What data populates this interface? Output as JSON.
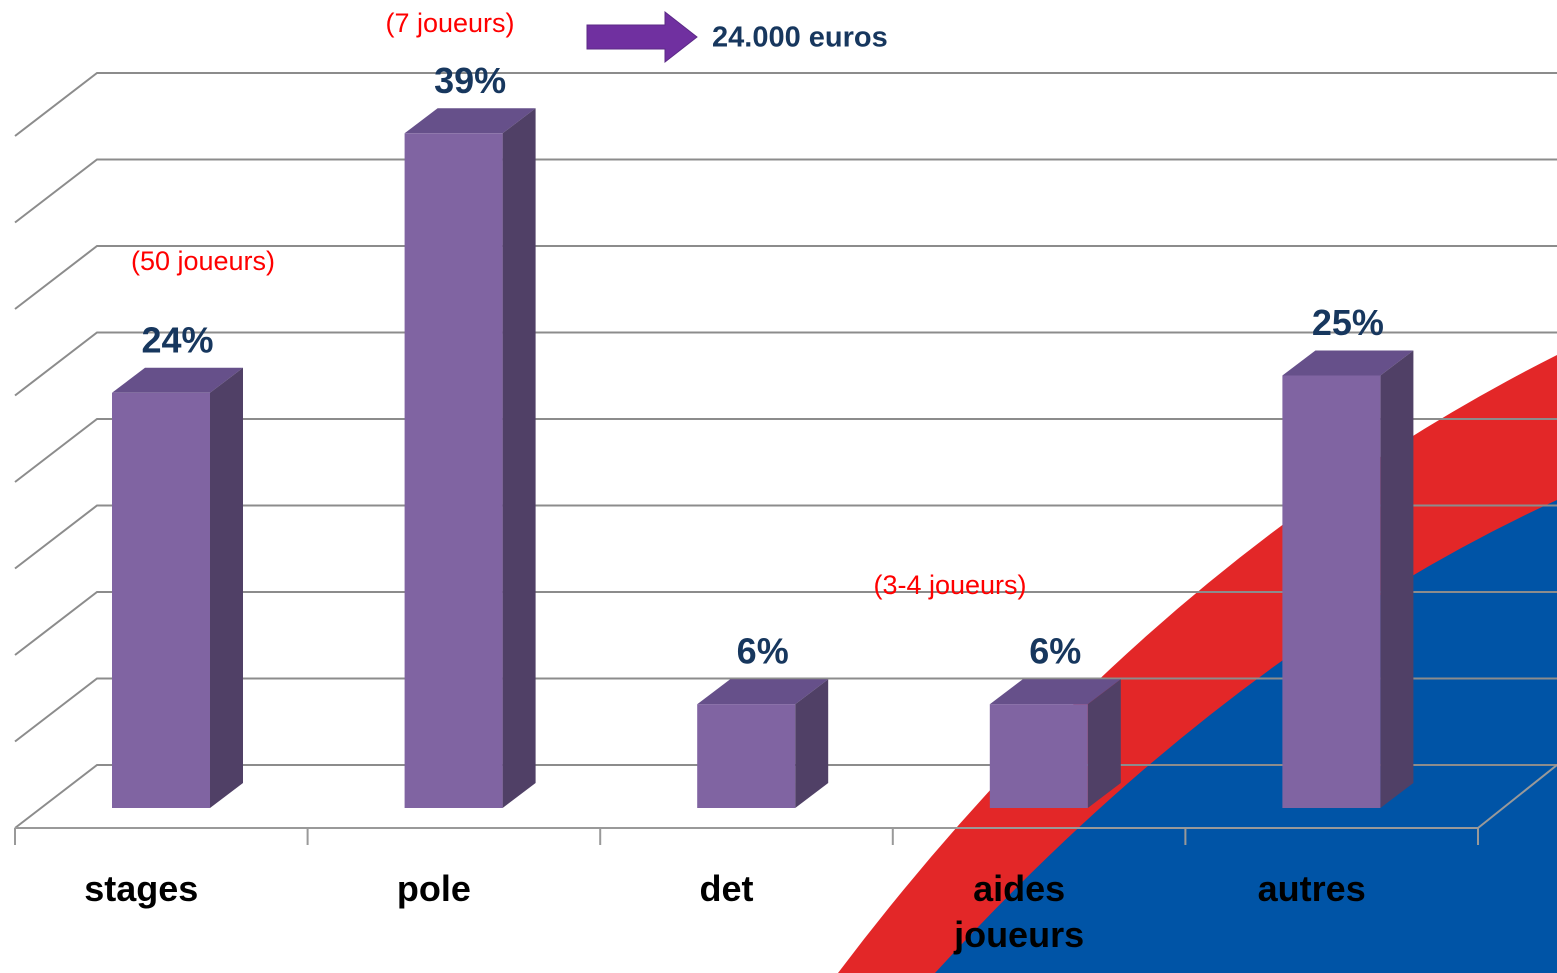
{
  "chart_data": {
    "type": "bar3d",
    "categories": [
      "stages",
      "pole",
      "det",
      "aides joueurs",
      "autres"
    ],
    "values": [
      24,
      39,
      6,
      6,
      25
    ],
    "value_labels": [
      "24%",
      "39%",
      "6%",
      "6%",
      "25%"
    ],
    "color": "#8064a2",
    "ylim": [
      0,
      40
    ],
    "yticks": [
      0,
      5,
      10,
      15,
      20,
      25,
      30,
      35,
      40
    ],
    "grid": true,
    "annotations": [
      "(7 joueurs)",
      "24.000 euros",
      "(50 joueurs)",
      "(3-4 joueurs)"
    ]
  }
}
